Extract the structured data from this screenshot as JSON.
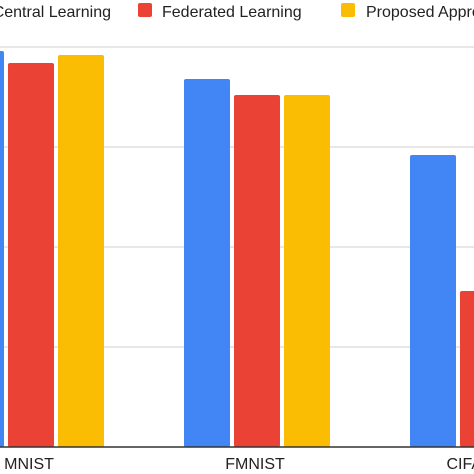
{
  "chart_data": {
    "type": "bar",
    "categories": [
      "MNIST",
      "FMNIST",
      "CIFAR"
    ],
    "series": [
      {
        "name": "Central Learning",
        "color": "#4285F4",
        "values": [
          99,
          92,
          73
        ]
      },
      {
        "name": "Federated Learning",
        "color": "#EA4335",
        "values": [
          96,
          88,
          39
        ]
      },
      {
        "name": "Proposed Approach",
        "color": "#FBBC04",
        "values": [
          98,
          88,
          null
        ]
      }
    ],
    "gridlines": true,
    "legend_position": "top"
  }
}
